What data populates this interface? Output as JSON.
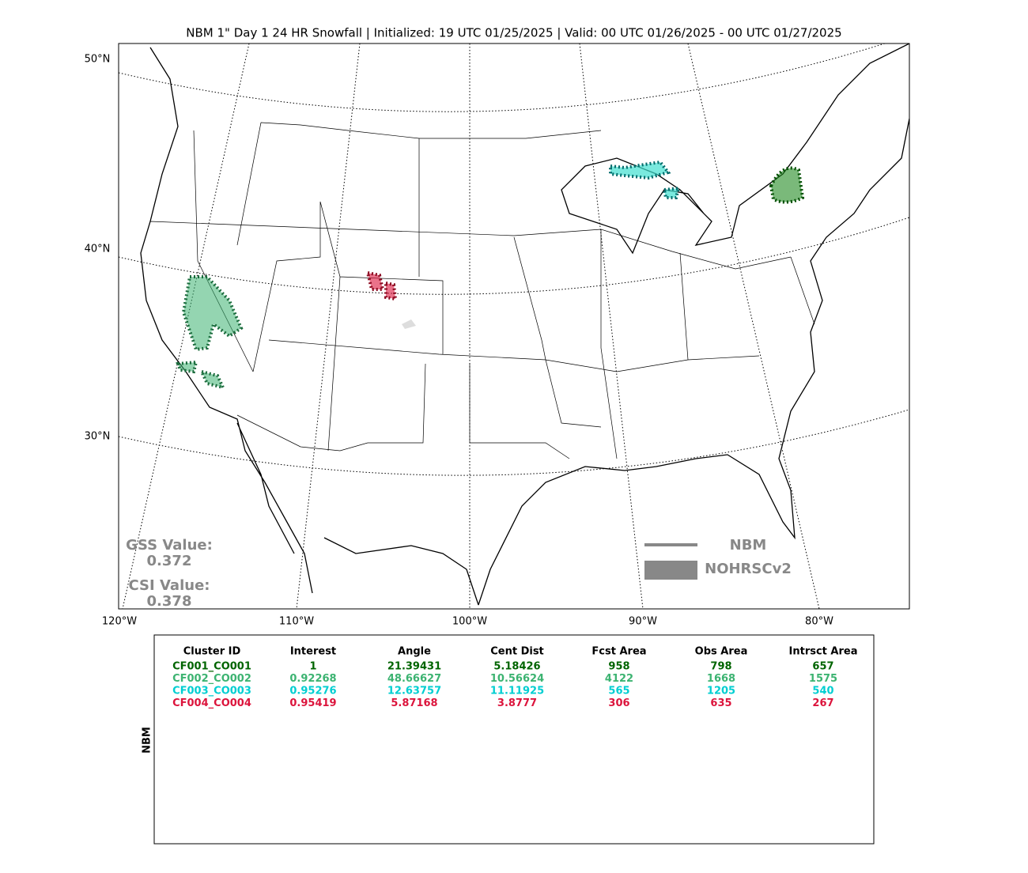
{
  "title": "NBM 1\" Day 1 24 HR Snowfall | Initialized: 19 UTC 01/25/2025 | Valid: 00 UTC 01/26/2025 - 00 UTC 01/27/2025",
  "map": {
    "lat_labels": [
      "50°N",
      "40°N",
      "30°N"
    ],
    "lon_labels": [
      "120°W",
      "110°W",
      "100°W",
      "90°W",
      "80°W"
    ],
    "gss_label": "GSS Value:",
    "gss_value": "0.372",
    "csi_label": "CSI Value:",
    "csi_value": "0.378",
    "legend": [
      "NBM",
      "NOHRSCv2"
    ]
  },
  "table": {
    "side_label": "NBM",
    "header": [
      "Cluster ID",
      "Interest",
      "Angle",
      "Cent Dist",
      "Fcst Area",
      "Obs Area",
      "Intrsct Area"
    ],
    "rows": [
      [
        "CF001_CO001",
        "1",
        "21.39431",
        "5.18426",
        "958",
        "798",
        "657"
      ],
      [
        "CF002_CO002",
        "0.92268",
        "48.66627",
        "10.56624",
        "4122",
        "1668",
        "1575"
      ],
      [
        "CF003_CO003",
        "0.95276",
        "12.63757",
        "11.11925",
        "565",
        "1205",
        "540"
      ],
      [
        "CF004_CO004",
        "0.95419",
        "5.87168",
        "3.8777",
        "306",
        "635",
        "267"
      ]
    ],
    "row_colors": [
      "#006400",
      "#3cb371",
      "#00ced1",
      "#dc143c"
    ]
  }
}
